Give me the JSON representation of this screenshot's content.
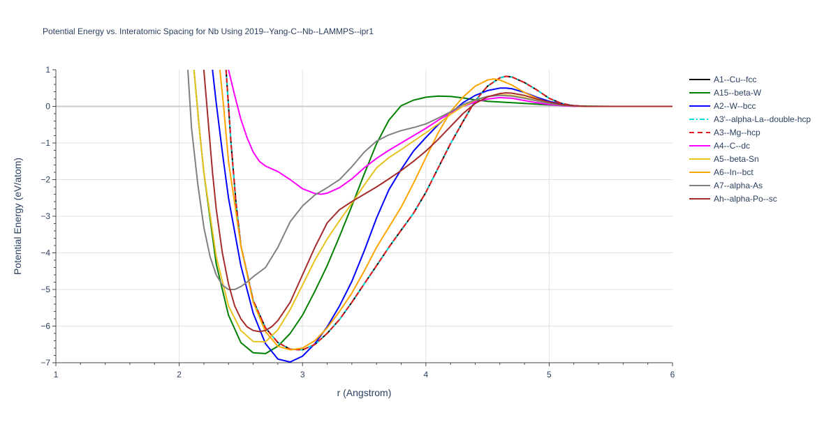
{
  "chart_data": {
    "type": "line",
    "title": "Potential Energy vs. Interatomic Spacing for Nb Using 2019--Yang-C--Nb--LAMMPS--ipr1",
    "xlabel": "r (Angstrom)",
    "ylabel": "Potential Energy (eV/atom)",
    "xlim": [
      1,
      6
    ],
    "ylim": [
      -7,
      1
    ],
    "x_ticks": [
      "1",
      "2",
      "3",
      "4",
      "5",
      "6"
    ],
    "y_ticks": [
      "1",
      "0",
      "−1",
      "−2",
      "−3",
      "−4",
      "−5",
      "−6",
      "−7"
    ],
    "grid": true,
    "legend_position": "right",
    "series": [
      {
        "name": "A1--Cu--fcc",
        "color": "#000000",
        "dash": "solid",
        "x": [
          2.38,
          2.42,
          2.46,
          2.5,
          2.6,
          2.7,
          2.8,
          2.9,
          3.0,
          3.1,
          3.2,
          3.3,
          3.4,
          3.5,
          3.6,
          3.7,
          3.8,
          3.9,
          4.0,
          4.1,
          4.2,
          4.3,
          4.4,
          4.5,
          4.6,
          4.65,
          4.7,
          4.8,
          4.9,
          5.0,
          5.1,
          5.2,
          5.3,
          5.5,
          6.0
        ],
        "y": [
          1.0,
          -1.0,
          -2.6,
          -3.8,
          -5.3,
          -6.05,
          -6.45,
          -6.63,
          -6.65,
          -6.5,
          -6.2,
          -5.82,
          -5.35,
          -4.85,
          -4.35,
          -3.85,
          -3.38,
          -2.92,
          -2.35,
          -1.68,
          -1.02,
          -0.42,
          0.15,
          0.55,
          0.78,
          0.82,
          0.8,
          0.65,
          0.45,
          0.22,
          0.08,
          0.02,
          0.0,
          0.0,
          0.0
        ]
      },
      {
        "name": "A15--beta-W",
        "color": "#008000",
        "dash": "solid",
        "x": [
          2.12,
          2.16,
          2.2,
          2.3,
          2.4,
          2.5,
          2.6,
          2.7,
          2.8,
          2.9,
          3.0,
          3.1,
          3.2,
          3.3,
          3.4,
          3.5,
          3.6,
          3.7,
          3.8,
          3.9,
          4.0,
          4.1,
          4.2,
          4.3,
          4.4,
          4.5,
          4.6,
          4.7,
          4.8,
          5.0,
          5.2,
          5.5,
          6.0
        ],
        "y": [
          1.0,
          -0.5,
          -1.8,
          -4.3,
          -5.7,
          -6.45,
          -6.73,
          -6.75,
          -6.55,
          -6.2,
          -5.7,
          -5.05,
          -4.35,
          -3.55,
          -2.72,
          -1.85,
          -1.02,
          -0.38,
          0.02,
          0.17,
          0.25,
          0.28,
          0.27,
          0.23,
          0.18,
          0.14,
          0.12,
          0.1,
          0.08,
          0.04,
          0.01,
          0.0,
          0.0
        ]
      },
      {
        "name": "A2--W--bcc",
        "color": "#0000ff",
        "dash": "solid",
        "x": [
          2.27,
          2.3,
          2.35,
          2.4,
          2.5,
          2.6,
          2.7,
          2.8,
          2.9,
          3.0,
          3.1,
          3.2,
          3.3,
          3.4,
          3.5,
          3.6,
          3.7,
          3.8,
          3.9,
          4.0,
          4.1,
          4.2,
          4.3,
          4.4,
          4.5,
          4.6,
          4.65,
          4.7,
          4.8,
          4.9,
          5.0,
          5.1,
          5.2,
          5.3,
          5.5,
          6.0
        ],
        "y": [
          1.0,
          0.1,
          -1.25,
          -2.5,
          -4.35,
          -5.65,
          -6.48,
          -6.9,
          -6.98,
          -6.82,
          -6.48,
          -6.02,
          -5.45,
          -4.78,
          -3.95,
          -3.05,
          -2.28,
          -1.72,
          -1.22,
          -0.85,
          -0.5,
          -0.2,
          0.1,
          0.3,
          0.43,
          0.5,
          0.5,
          0.48,
          0.38,
          0.25,
          0.14,
          0.06,
          0.02,
          0.0,
          0.0,
          0.0
        ]
      },
      {
        "name": "A3'--alpha-La--double-hcp",
        "color": "#00dddd",
        "dash": "dashdot",
        "x": [
          2.38,
          2.42,
          2.46,
          2.5,
          2.6,
          2.7,
          2.8,
          2.9,
          3.0,
          3.1,
          3.2,
          3.3,
          3.4,
          3.5,
          3.6,
          3.7,
          3.8,
          3.9,
          4.0,
          4.1,
          4.2,
          4.3,
          4.4,
          4.5,
          4.6,
          4.65,
          4.7,
          4.8,
          4.9,
          5.0,
          5.1,
          5.2,
          5.3,
          5.5,
          6.0
        ],
        "y": [
          1.0,
          -1.0,
          -2.6,
          -3.8,
          -5.3,
          -6.05,
          -6.45,
          -6.63,
          -6.65,
          -6.5,
          -6.2,
          -5.82,
          -5.35,
          -4.85,
          -4.35,
          -3.85,
          -3.38,
          -2.92,
          -2.35,
          -1.68,
          -1.02,
          -0.42,
          0.15,
          0.55,
          0.78,
          0.82,
          0.8,
          0.65,
          0.45,
          0.22,
          0.08,
          0.02,
          0.0,
          0.0,
          0.0
        ]
      },
      {
        "name": "A3--Mg--hcp",
        "color": "#e31a1c",
        "dash": "dash",
        "x": [
          2.38,
          2.42,
          2.46,
          2.5,
          2.6,
          2.7,
          2.8,
          2.9,
          3.0,
          3.1,
          3.2,
          3.3,
          3.4,
          3.5,
          3.6,
          3.7,
          3.8,
          3.9,
          4.0,
          4.1,
          4.2,
          4.3,
          4.4,
          4.5,
          4.6,
          4.65,
          4.7,
          4.8,
          4.9,
          5.0,
          5.1,
          5.2,
          5.3,
          5.5,
          6.0
        ],
        "y": [
          1.0,
          -1.0,
          -2.6,
          -3.8,
          -5.3,
          -6.05,
          -6.45,
          -6.63,
          -6.65,
          -6.5,
          -6.2,
          -5.82,
          -5.35,
          -4.85,
          -4.35,
          -3.85,
          -3.38,
          -2.92,
          -2.35,
          -1.68,
          -1.02,
          -0.42,
          0.15,
          0.55,
          0.78,
          0.82,
          0.8,
          0.65,
          0.45,
          0.22,
          0.08,
          0.02,
          0.0,
          0.0,
          0.0
        ]
      },
      {
        "name": "A4--C--dc",
        "color": "#ff00ff",
        "dash": "solid",
        "x": [
          2.4,
          2.45,
          2.5,
          2.55,
          2.6,
          2.65,
          2.7,
          2.8,
          2.9,
          3.0,
          3.1,
          3.15,
          3.2,
          3.3,
          3.4,
          3.5,
          3.6,
          3.7,
          3.8,
          3.9,
          4.0,
          4.1,
          4.2,
          4.3,
          4.4,
          4.5,
          4.6,
          4.7,
          4.8,
          4.9,
          5.0,
          5.1,
          5.2,
          5.3,
          5.5,
          6.0
        ],
        "y": [
          1.0,
          0.3,
          -0.35,
          -0.85,
          -1.25,
          -1.5,
          -1.63,
          -1.78,
          -2.0,
          -2.25,
          -2.38,
          -2.4,
          -2.37,
          -2.22,
          -1.98,
          -1.68,
          -1.42,
          -1.2,
          -1.0,
          -0.8,
          -0.6,
          -0.38,
          -0.18,
          0.0,
          0.12,
          0.2,
          0.24,
          0.22,
          0.16,
          0.1,
          0.05,
          0.02,
          0.0,
          0.0,
          0.0,
          0.0
        ]
      },
      {
        "name": "A5--beta-Sn",
        "color": "#e7c21e",
        "dash": "solid",
        "x": [
          2.12,
          2.16,
          2.2,
          2.3,
          2.4,
          2.5,
          2.6,
          2.7,
          2.8,
          2.9,
          3.0,
          3.1,
          3.2,
          3.3,
          3.4,
          3.5,
          3.6,
          3.7,
          3.8,
          3.9,
          4.0,
          4.1,
          4.2,
          4.3,
          4.4,
          4.5,
          4.6,
          4.65,
          4.7,
          4.8,
          4.9,
          5.0,
          5.1,
          5.2,
          5.3,
          5.5,
          6.0
        ],
        "y": [
          1.0,
          -0.5,
          -1.8,
          -4.1,
          -5.45,
          -6.12,
          -6.42,
          -6.43,
          -6.1,
          -5.55,
          -4.88,
          -4.2,
          -3.62,
          -3.12,
          -2.65,
          -2.15,
          -1.68,
          -1.4,
          -1.18,
          -0.95,
          -0.72,
          -0.48,
          -0.22,
          0.0,
          0.17,
          0.27,
          0.31,
          0.31,
          0.3,
          0.24,
          0.16,
          0.09,
          0.04,
          0.01,
          0.0,
          0.0,
          0.0
        ]
      },
      {
        "name": "A6--In--bct",
        "color": "#ffa500",
        "dash": "solid",
        "x": [
          2.33,
          2.36,
          2.4,
          2.5,
          2.6,
          2.7,
          2.8,
          2.9,
          3.0,
          3.1,
          3.2,
          3.3,
          3.4,
          3.5,
          3.6,
          3.7,
          3.8,
          3.9,
          4.0,
          4.1,
          4.2,
          4.3,
          4.4,
          4.5,
          4.55,
          4.6,
          4.7,
          4.8,
          4.9,
          5.0,
          5.1,
          5.2,
          5.3,
          5.5,
          6.0
        ],
        "y": [
          1.0,
          0.0,
          -1.5,
          -3.8,
          -5.35,
          -6.15,
          -6.55,
          -6.65,
          -6.6,
          -6.4,
          -6.05,
          -5.6,
          -5.1,
          -4.5,
          -3.85,
          -3.3,
          -2.75,
          -2.1,
          -1.4,
          -0.72,
          -0.15,
          0.25,
          0.55,
          0.72,
          0.75,
          0.72,
          0.58,
          0.38,
          0.22,
          0.1,
          0.04,
          0.01,
          0.0,
          0.0,
          0.0
        ]
      },
      {
        "name": "A7--alpha-As",
        "color": "#808080",
        "dash": "solid",
        "x": [
          2.07,
          2.1,
          2.15,
          2.2,
          2.25,
          2.3,
          2.35,
          2.4,
          2.45,
          2.5,
          2.55,
          2.6,
          2.7,
          2.8,
          2.9,
          3.0,
          3.1,
          3.2,
          3.3,
          3.4,
          3.5,
          3.6,
          3.7,
          3.8,
          3.9,
          4.0,
          4.1,
          4.2,
          4.3,
          4.4,
          4.5,
          4.6,
          4.7,
          4.8,
          4.9,
          5.0,
          5.1,
          5.2,
          5.3,
          5.5,
          6.0
        ],
        "y": [
          1.0,
          -0.6,
          -2.1,
          -3.3,
          -4.1,
          -4.6,
          -4.88,
          -5.0,
          -5.0,
          -4.92,
          -4.8,
          -4.65,
          -4.4,
          -3.85,
          -3.15,
          -2.72,
          -2.42,
          -2.22,
          -2.0,
          -1.65,
          -1.25,
          -0.95,
          -0.78,
          -0.66,
          -0.58,
          -0.48,
          -0.32,
          -0.15,
          0.05,
          0.18,
          0.27,
          0.3,
          0.28,
          0.22,
          0.15,
          0.08,
          0.03,
          0.01,
          0.0,
          0.0,
          0.0
        ]
      },
      {
        "name": "Ah--alpha-Po--sc",
        "color": "#a52a2a",
        "dash": "solid",
        "x": [
          2.2,
          2.23,
          2.27,
          2.3,
          2.35,
          2.4,
          2.45,
          2.5,
          2.55,
          2.6,
          2.65,
          2.7,
          2.75,
          2.8,
          2.9,
          3.0,
          3.1,
          3.2,
          3.3,
          3.4,
          3.5,
          3.6,
          3.7,
          3.8,
          3.9,
          4.0,
          4.1,
          4.2,
          4.3,
          4.4,
          4.5,
          4.6,
          4.65,
          4.7,
          4.8,
          4.9,
          5.0,
          5.1,
          5.2,
          5.3,
          5.5,
          6.0
        ],
        "y": [
          1.0,
          -0.2,
          -1.8,
          -2.8,
          -4.0,
          -4.85,
          -5.45,
          -5.8,
          -6.02,
          -6.12,
          -6.15,
          -6.12,
          -6.02,
          -5.85,
          -5.35,
          -4.6,
          -3.85,
          -3.18,
          -2.82,
          -2.6,
          -2.4,
          -2.2,
          -1.98,
          -1.75,
          -1.5,
          -1.22,
          -0.9,
          -0.55,
          -0.2,
          0.08,
          0.26,
          0.35,
          0.37,
          0.36,
          0.3,
          0.2,
          0.12,
          0.05,
          0.02,
          0.0,
          0.0,
          0.0
        ]
      }
    ]
  }
}
